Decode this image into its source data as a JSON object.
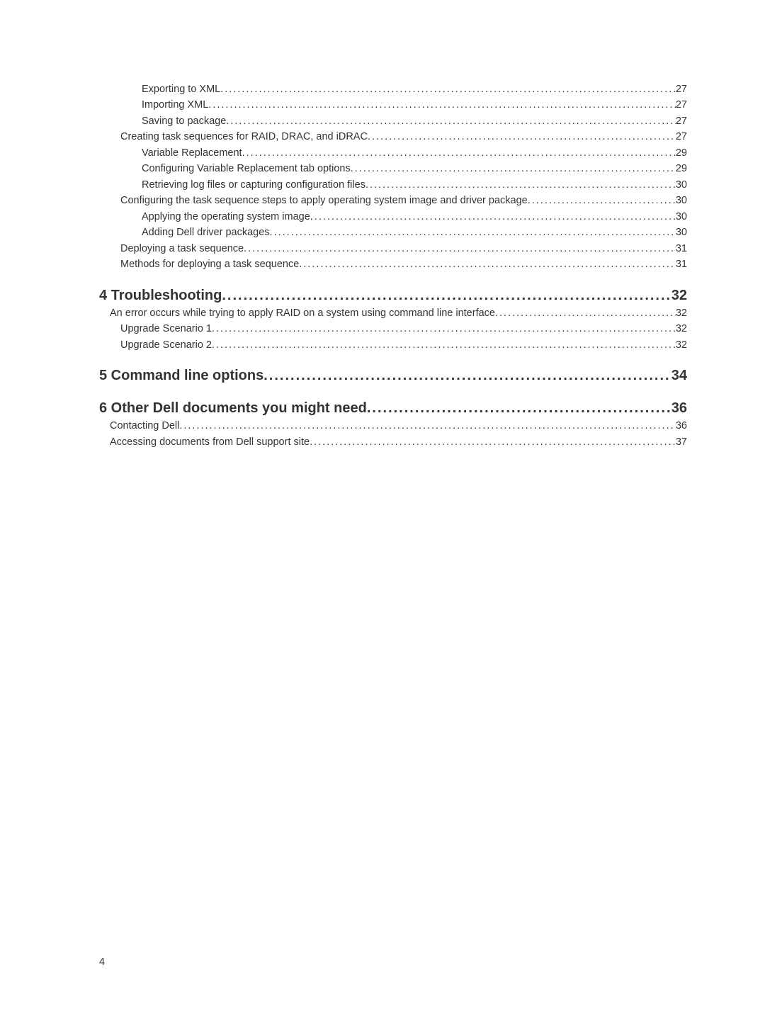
{
  "toc": {
    "group1": [
      {
        "text": "Exporting to XML",
        "page": "27",
        "level": "lvl-3"
      },
      {
        "text": "Importing XML",
        "page": "27",
        "level": "lvl-3"
      },
      {
        "text": "Saving to package",
        "page": "27",
        "level": "lvl-3"
      },
      {
        "text": "Creating task sequences for RAID, DRAC, and iDRAC",
        "page": "27",
        "level": "lvl-2"
      },
      {
        "text": "Variable Replacement",
        "page": "29",
        "level": "lvl-3"
      },
      {
        "text": "Configuring Variable Replacement tab options",
        "page": "29",
        "level": "lvl-3"
      },
      {
        "text": "Retrieving log files or capturing configuration files ",
        "page": "30",
        "level": "lvl-3"
      },
      {
        "text": "Configuring the task sequence steps to apply operating system image and driver package",
        "page": " 30",
        "level": "lvl-2"
      },
      {
        "text": "Applying the operating system image",
        "page": "30",
        "level": "lvl-3"
      },
      {
        "text": "Adding Dell driver packages",
        "page": " 30",
        "level": "lvl-3"
      },
      {
        "text": "Deploying a task sequence",
        "page": " 31",
        "level": "lvl-2"
      },
      {
        "text": "Methods for deploying a task sequence",
        "page": "31",
        "level": "lvl-2"
      }
    ],
    "group2_heading": {
      "text": "4 Troubleshooting",
      "page": " 32"
    },
    "group2": [
      {
        "text": "An error occurs while trying to apply RAID on a system using command line interface",
        "page": " 32",
        "level": "lvl-1"
      },
      {
        "text": "Upgrade Scenario 1",
        "page": " 32",
        "level": "lvl-2"
      },
      {
        "text": "Upgrade Scenario 2",
        "page": "32",
        "level": "lvl-2"
      }
    ],
    "group3_heading": {
      "text": "5 Command line options",
      "page": " 34"
    },
    "group4_heading": {
      "text": "6 Other Dell documents you might need",
      "page": "36"
    },
    "group4": [
      {
        "text": "Contacting Dell",
        "page": " 36",
        "level": "lvl-1"
      },
      {
        "text": "Accessing documents from Dell support site",
        "page": " 37",
        "level": "lvl-1"
      }
    ]
  },
  "page_number": "4"
}
